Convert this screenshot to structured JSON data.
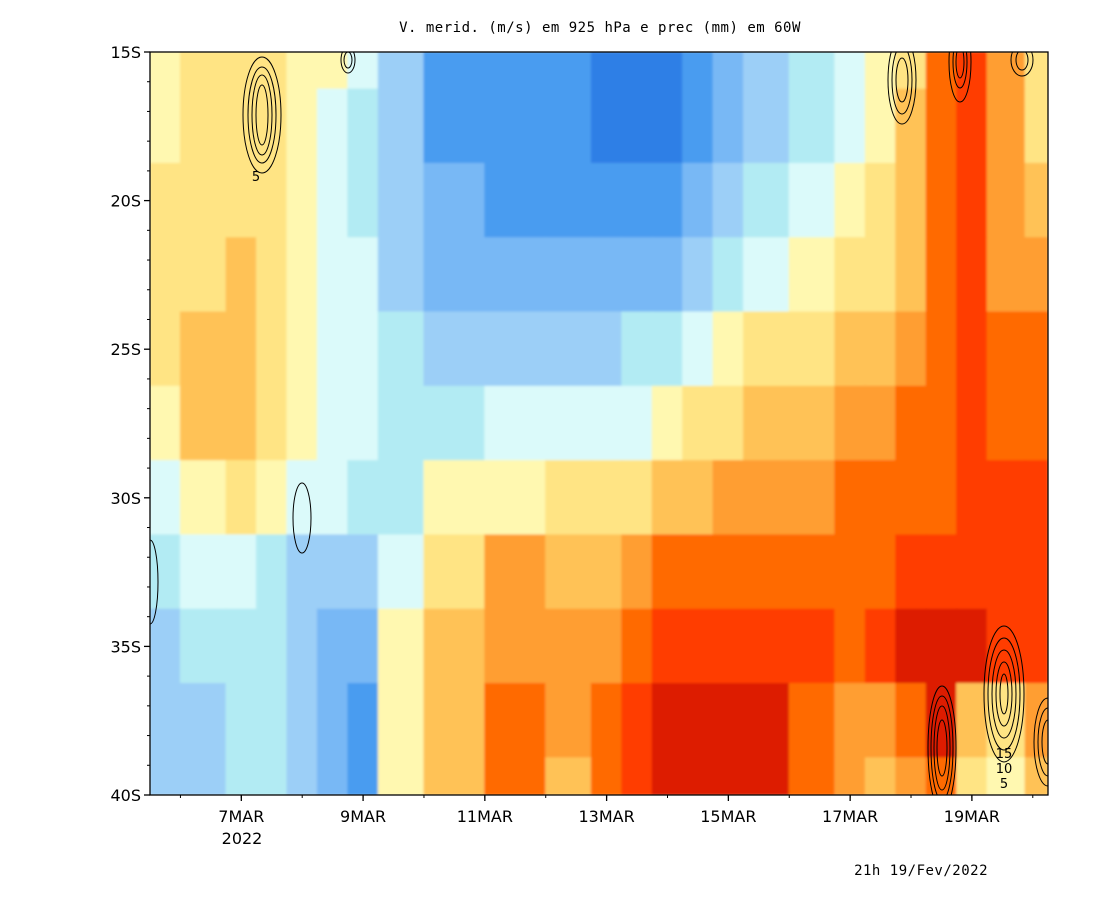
{
  "chart_data": {
    "type": "heatmap",
    "title": "V. merid. (m/s) em 925 hPa e prec (mm) em 60W",
    "timestamp": "21h 19/Fev/2022",
    "x_ticks": [
      "7MAR",
      "9MAR",
      "11MAR",
      "13MAR",
      "15MAR",
      "17MAR",
      "19MAR"
    ],
    "x_year_label": "2022",
    "y_ticks": [
      "15S",
      "20S",
      "25S",
      "30S",
      "35S",
      "40S"
    ],
    "xlim": [
      "2022-03-05T12:00",
      "2022-03-20T06:00"
    ],
    "ylim": [
      -40,
      -15
    ],
    "color_scale": [
      "#2e7fe6",
      "#4a9cf0",
      "#78b8f5",
      "#9ccff7",
      "#b2ebf3",
      "#dbfafa",
      "#fff8b0",
      "#ffe484",
      "#ffc256",
      "#ff9e30",
      "#ff6a06",
      "#ff3c06",
      "#dd1a06"
    ],
    "times": [
      "2022-03-05T12:00",
      "2022-03-06T12:00",
      "2022-03-07T00:00",
      "2022-03-07T12:00",
      "2022-03-08T00:00",
      "2022-03-08T12:00",
      "2022-03-09T00:00",
      "2022-03-09T12:00",
      "2022-03-10T12:00",
      "2022-03-11T12:00",
      "2022-03-12T12:00",
      "2022-03-13T00:00",
      "2022-03-13T12:00",
      "2022-03-14T00:00",
      "2022-03-14T12:00",
      "2022-03-15T00:00",
      "2022-03-15T12:00",
      "2022-03-16T12:00",
      "2022-03-17T00:00",
      "2022-03-17T12:00",
      "2022-03-18T00:00",
      "2022-03-18T12:00",
      "2022-03-19T00:00",
      "2022-03-19T12:00",
      "2022-03-20T06:00"
    ],
    "latitudes": [
      -15,
      -17.5,
      -20,
      -22.5,
      -25,
      -27.5,
      -30,
      -32.5,
      -35,
      -37.5,
      -40
    ],
    "v_levels": [
      [
        6,
        7,
        7,
        7,
        6,
        6,
        5,
        3,
        1,
        1,
        1,
        0,
        0,
        0,
        1,
        2,
        3,
        4,
        5,
        6,
        7,
        10,
        11,
        9,
        7
      ],
      [
        6,
        7,
        7,
        7,
        6,
        5,
        4,
        3,
        1,
        1,
        1,
        0,
        0,
        0,
        1,
        2,
        3,
        4,
        5,
        6,
        8,
        10,
        11,
        9,
        7
      ],
      [
        7,
        7,
        7,
        7,
        6,
        5,
        4,
        3,
        2,
        1,
        1,
        1,
        1,
        1,
        2,
        3,
        4,
        5,
        6,
        7,
        8,
        10,
        11,
        9,
        8
      ],
      [
        7,
        7,
        8,
        7,
        6,
        5,
        5,
        3,
        2,
        2,
        2,
        2,
        2,
        2,
        3,
        4,
        5,
        6,
        7,
        7,
        8,
        10,
        11,
        9,
        9
      ],
      [
        7,
        8,
        8,
        7,
        6,
        5,
        5,
        4,
        3,
        3,
        3,
        3,
        4,
        4,
        5,
        6,
        7,
        7,
        8,
        8,
        9,
        10,
        11,
        10,
        10
      ],
      [
        6,
        8,
        8,
        7,
        6,
        5,
        5,
        4,
        4,
        5,
        5,
        5,
        5,
        6,
        7,
        7,
        8,
        8,
        9,
        9,
        10,
        10,
        11,
        10,
        10
      ],
      [
        5,
        6,
        7,
        6,
        5,
        5,
        4,
        4,
        6,
        6,
        7,
        7,
        7,
        8,
        8,
        9,
        9,
        9,
        10,
        10,
        10,
        10,
        11,
        11,
        11
      ],
      [
        4,
        5,
        5,
        4,
        3,
        3,
        3,
        5,
        7,
        9,
        8,
        8,
        9,
        10,
        10,
        10,
        10,
        10,
        10,
        10,
        11,
        11,
        11,
        11,
        11
      ],
      [
        3,
        4,
        4,
        4,
        3,
        2,
        2,
        6,
        8,
        9,
        9,
        9,
        10,
        11,
        11,
        11,
        11,
        11,
        10,
        11,
        12,
        12,
        12,
        11,
        11
      ],
      [
        3,
        3,
        4,
        4,
        3,
        2,
        1,
        6,
        8,
        10,
        9,
        10,
        11,
        12,
        12,
        12,
        12,
        10,
        9,
        9,
        10,
        12,
        8,
        7,
        9
      ],
      [
        3,
        3,
        4,
        4,
        3,
        2,
        1,
        6,
        8,
        10,
        8,
        10,
        11,
        12,
        12,
        12,
        12,
        10,
        9,
        8,
        9,
        10,
        7,
        6,
        8
      ]
    ],
    "precip_contours": {
      "levels": [
        5,
        10,
        15
      ],
      "labels": [
        "5",
        "5",
        "10",
        "15"
      ]
    }
  }
}
